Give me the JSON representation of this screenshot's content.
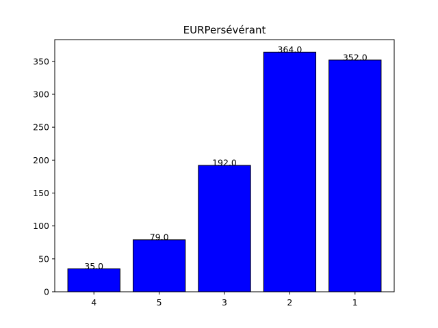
{
  "chart_data": {
    "type": "bar",
    "title": "EURPersévérant",
    "xlabel": "",
    "ylabel": "",
    "categories": [
      "4",
      "5",
      "3",
      "2",
      "1"
    ],
    "values": [
      35.0,
      79.0,
      192.0,
      364.0,
      352.0
    ],
    "value_labels": [
      "35.0",
      "79.0",
      "192.0",
      "364.0",
      "352.0"
    ],
    "ylim": [
      0,
      383
    ],
    "yticks": [
      0,
      50,
      100,
      150,
      200,
      250,
      300,
      350
    ],
    "bar_color": "#0000ff",
    "edge_color": "#000000",
    "grid": false,
    "legend": "none"
  }
}
